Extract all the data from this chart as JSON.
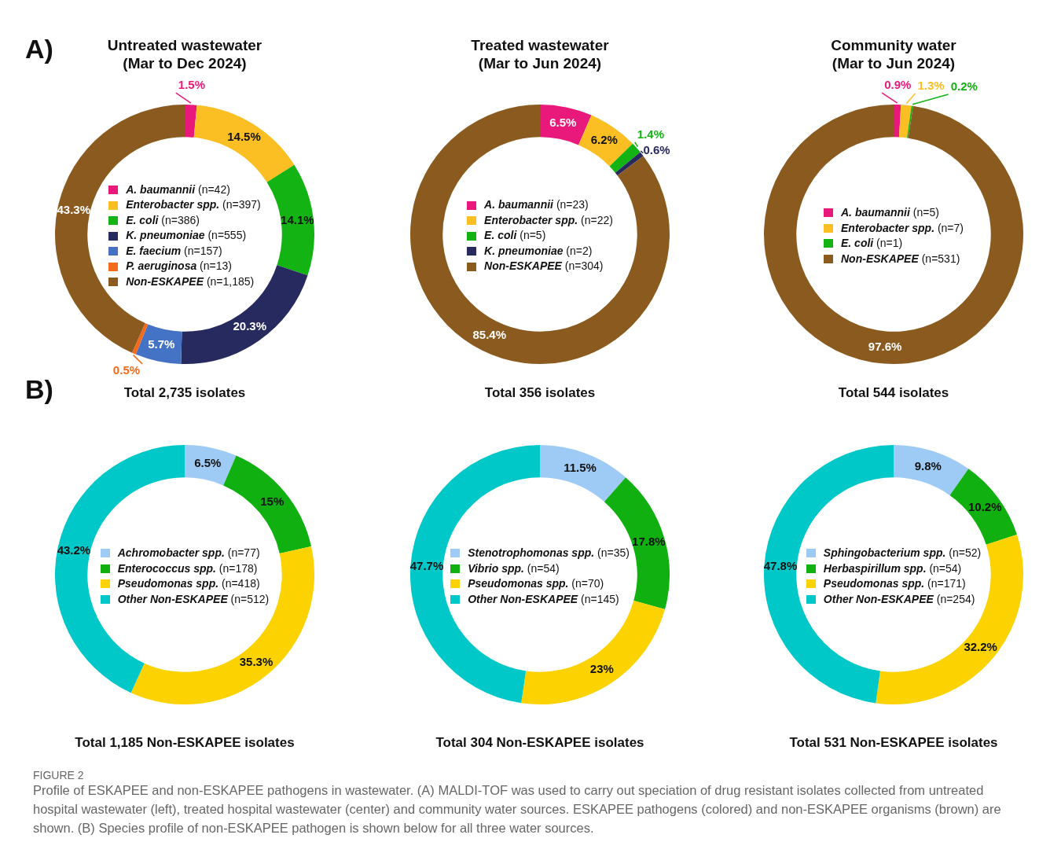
{
  "chart_data": [
    {
      "type": "donut",
      "title": "Untreated wastewater\n(Mar to Dec 2024)",
      "legend": "center",
      "categories": [
        "A. baumannii (n=42)",
        "Enterobacter spp. (n=397)",
        "E. coli (n=386)",
        "K. pneumoniae (n=555)",
        "E. faecium (n=157)",
        "P. aeruginosa (n=13)",
        "Non-ESKAPEE (n=1,185)"
      ],
      "values": [
        1.5,
        14.5,
        14.1,
        20.3,
        5.7,
        0.5,
        43.3
      ],
      "value_labels": [
        "1.5%",
        "14.5%",
        "14.1%",
        "20.3%",
        "5.7%",
        "0.5%",
        "43.3%"
      ],
      "colors": [
        "#e8197a",
        "#fbbf24",
        "#12b312",
        "#262a5e",
        "#4472c4",
        "#f36a1b",
        "#8b5a1e"
      ],
      "annotations": [
        "Total 2,735 isolates",
        "A)"
      ]
    },
    {
      "type": "donut",
      "title": "Treated wastewater\n(Mar to Jun 2024)",
      "legend": "center",
      "categories": [
        "A. baumannii (n=23)",
        "Enterobacter spp. (n=22)",
        "E. coli (n=5)",
        "K. pneumoniae (n=2)",
        "Non-ESKAPEE (n=304)"
      ],
      "values": [
        6.5,
        6.2,
        1.4,
        0.6,
        85.4
      ],
      "value_labels": [
        "6.5%",
        "6.2%",
        "1.4%",
        "0.6%",
        "85.4%"
      ],
      "colors": [
        "#e8197a",
        "#fbbf24",
        "#12b312",
        "#262a5e",
        "#8b5a1e"
      ],
      "annotations": [
        "Total 356 isolates"
      ]
    },
    {
      "type": "donut",
      "title": "Community water\n(Mar to Jun 2024)",
      "legend": "center",
      "categories": [
        "A. baumannii (n=5)",
        "Enterobacter spp. (n=7)",
        "E. coli (n=1)",
        "Non-ESKAPEE (n=531)"
      ],
      "values": [
        0.9,
        1.3,
        0.2,
        97.6
      ],
      "value_labels": [
        "0.9%",
        "1.3%",
        "0.2%",
        "97.6%"
      ],
      "colors": [
        "#e8197a",
        "#fbbf24",
        "#12b312",
        "#8b5a1e"
      ],
      "annotations": [
        "Total 544 isolates"
      ]
    },
    {
      "type": "donut",
      "legend": "center",
      "categories": [
        "Achromobacter spp. (n=77)",
        "Enterococcus spp. (n=178)",
        "Pseudomonas spp. (n=418)",
        "Other Non-ESKAPEE (n=512)"
      ],
      "values": [
        6.5,
        15,
        35.3,
        43.2
      ],
      "value_labels": [
        "6.5%",
        "15%",
        "35.3%",
        "43.2%"
      ],
      "colors": [
        "#9dcbf5",
        "#10b010",
        "#fcd200",
        "#00c8c8"
      ],
      "annotations": [
        "Total 1,185 Non-ESKAPEE isolates",
        "B)"
      ]
    },
    {
      "type": "donut",
      "legend": "center",
      "categories": [
        "Stenotrophomonas spp. (n=35)",
        "Vibrio spp. (n=54)",
        "Pseudomonas spp. (n=70)",
        "Other Non-ESKAPEE (n=145)"
      ],
      "values": [
        11.5,
        17.8,
        23,
        47.7
      ],
      "value_labels": [
        "11.5%",
        "17.8%",
        "23%",
        "47.7%"
      ],
      "colors": [
        "#9dcbf5",
        "#10b010",
        "#fcd200",
        "#00c8c8"
      ],
      "annotations": [
        "Total 304 Non-ESKAPEE isolates"
      ]
    },
    {
      "type": "donut",
      "legend": "center",
      "categories": [
        "Sphingobacterium spp. (n=52)",
        "Herbaspirillum spp. (n=54)",
        "Pseudomonas spp. (n=171)",
        "Other Non-ESKAPEE (n=254)"
      ],
      "values": [
        9.8,
        10.2,
        32.2,
        47.8
      ],
      "value_labels": [
        "9.8%",
        "10.2%",
        "32.2%",
        "47.8%"
      ],
      "colors": [
        "#9dcbf5",
        "#10b010",
        "#fcd200",
        "#00c8c8"
      ],
      "annotations": [
        "Total 531 Non-ESKAPEE isolates",
        "FIGURE 2",
        "Profile of ESKAPEE and non-ESKAPEE pathogens in wastewater. (A) MALDI-TOF was used to carry out speciation of drug resistant isolates collected from untreated hospital wastewater (left), treated hospital wastewater (center) and community water sources. ESKAPEE pathogens (colored) and non-ESKAPEE organisms (brown) are shown. (B) Species profile of non-ESKAPEE pathogen is shown below for all three water sources."
      ]
    }
  ]
}
